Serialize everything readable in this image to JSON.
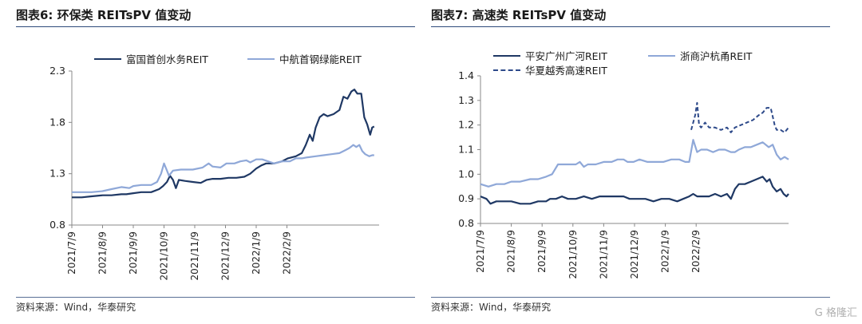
{
  "chart_data": [
    {
      "type": "line",
      "title": "图表6:  环保类 REITsPV 值变动",
      "source": "资料来源：Wind，华泰研究",
      "ylim": [
        0.8,
        2.3
      ],
      "y_ticks": [
        "0.8",
        "1.3",
        "1.8",
        "2.3"
      ],
      "x_ticks": [
        "2021/7/9",
        "2021/8/9",
        "2021/9/9",
        "2021/10/9",
        "2021/11/9",
        "2021/12/9",
        "2022/1/9",
        "2022/2/9"
      ],
      "grid": false,
      "legend_position": "top",
      "series": [
        {
          "name": "富国首创水务REIT",
          "color": "#1f3864",
          "style": "solid",
          "points": [
            [
              0,
              1.07
            ],
            [
              10,
              1.07
            ],
            [
              20,
              1.08
            ],
            [
              31,
              1.09
            ],
            [
              40,
              1.09
            ],
            [
              50,
              1.1
            ],
            [
              55,
              1.1
            ],
            [
              62,
              1.11
            ],
            [
              70,
              1.12
            ],
            [
              80,
              1.12
            ],
            [
              88,
              1.15
            ],
            [
              92,
              1.18
            ],
            [
              96,
              1.22
            ],
            [
              99,
              1.28
            ],
            [
              102,
              1.24
            ],
            [
              105,
              1.16
            ],
            [
              108,
              1.24
            ],
            [
              114,
              1.23
            ],
            [
              122,
              1.22
            ],
            [
              130,
              1.21
            ],
            [
              136,
              1.24
            ],
            [
              142,
              1.25
            ],
            [
              150,
              1.25
            ],
            [
              158,
              1.26
            ],
            [
              166,
              1.26
            ],
            [
              174,
              1.27
            ],
            [
              180,
              1.3
            ],
            [
              186,
              1.35
            ],
            [
              191,
              1.38
            ],
            [
              196,
              1.4
            ],
            [
              204,
              1.4
            ],
            [
              212,
              1.42
            ],
            [
              218,
              1.45
            ],
            [
              226,
              1.47
            ],
            [
              232,
              1.5
            ],
            [
              236,
              1.58
            ],
            [
              240,
              1.68
            ],
            [
              243,
              1.62
            ],
            [
              246,
              1.75
            ],
            [
              250,
              1.85
            ],
            [
              254,
              1.88
            ],
            [
              258,
              1.86
            ],
            [
              264,
              1.88
            ],
            [
              270,
              1.92
            ],
            [
              274,
              2.05
            ],
            [
              278,
              2.03
            ],
            [
              282,
              2.1
            ],
            [
              285,
              2.12
            ],
            [
              288,
              2.08
            ],
            [
              292,
              2.08
            ],
            [
              295,
              1.85
            ],
            [
              298,
              1.78
            ],
            [
              301,
              1.68
            ],
            [
              303,
              1.75
            ],
            [
              305,
              1.76
            ]
          ]
        },
        {
          "name": "中航首钢绿能REIT",
          "color": "#8fa8d8",
          "style": "solid",
          "points": [
            [
              0,
              1.12
            ],
            [
              10,
              1.12
            ],
            [
              20,
              1.12
            ],
            [
              31,
              1.13
            ],
            [
              40,
              1.15
            ],
            [
              50,
              1.17
            ],
            [
              58,
              1.16
            ],
            [
              62,
              1.18
            ],
            [
              70,
              1.19
            ],
            [
              80,
              1.19
            ],
            [
              86,
              1.22
            ],
            [
              90,
              1.3
            ],
            [
              93,
              1.4
            ],
            [
              96,
              1.33
            ],
            [
              98,
              1.28
            ],
            [
              102,
              1.33
            ],
            [
              110,
              1.34
            ],
            [
              122,
              1.34
            ],
            [
              132,
              1.36
            ],
            [
              138,
              1.4
            ],
            [
              142,
              1.37
            ],
            [
              150,
              1.36
            ],
            [
              156,
              1.4
            ],
            [
              164,
              1.4
            ],
            [
              170,
              1.42
            ],
            [
              176,
              1.43
            ],
            [
              180,
              1.41
            ],
            [
              186,
              1.44
            ],
            [
              192,
              1.44
            ],
            [
              198,
              1.42
            ],
            [
              204,
              1.4
            ],
            [
              212,
              1.42
            ],
            [
              220,
              1.42
            ],
            [
              226,
              1.45
            ],
            [
              232,
              1.45
            ],
            [
              238,
              1.46
            ],
            [
              246,
              1.47
            ],
            [
              254,
              1.48
            ],
            [
              262,
              1.49
            ],
            [
              270,
              1.5
            ],
            [
              276,
              1.53
            ],
            [
              280,
              1.55
            ],
            [
              284,
              1.58
            ],
            [
              287,
              1.56
            ],
            [
              290,
              1.58
            ],
            [
              293,
              1.52
            ],
            [
              296,
              1.49
            ],
            [
              300,
              1.47
            ],
            [
              303,
              1.48
            ],
            [
              305,
              1.48
            ]
          ]
        }
      ]
    },
    {
      "type": "line",
      "title": "图表7:  高速类 REITsPV 值变动",
      "source": "资料来源：Wind，华泰研究",
      "ylim": [
        0.8,
        1.4
      ],
      "y_ticks": [
        "0.8",
        "0.9",
        "1.0",
        "1.1",
        "1.2",
        "1.3",
        "1.4"
      ],
      "x_ticks": [
        "2021/7/9",
        "2021/8/9",
        "2021/9/9",
        "2021/10/9",
        "2021/11/9",
        "2021/12/9",
        "2022/1/9",
        "2022/2/9"
      ],
      "grid": false,
      "legend_position": "top",
      "series": [
        {
          "name": "平安广州广河REIT",
          "color": "#1f3864",
          "style": "solid",
          "points": [
            [
              0,
              0.91
            ],
            [
              6,
              0.9
            ],
            [
              10,
              0.88
            ],
            [
              16,
              0.89
            ],
            [
              24,
              0.89
            ],
            [
              31,
              0.89
            ],
            [
              40,
              0.88
            ],
            [
              50,
              0.88
            ],
            [
              58,
              0.89
            ],
            [
              66,
              0.89
            ],
            [
              70,
              0.9
            ],
            [
              76,
              0.9
            ],
            [
              82,
              0.91
            ],
            [
              88,
              0.9
            ],
            [
              96,
              0.9
            ],
            [
              104,
              0.91
            ],
            [
              112,
              0.9
            ],
            [
              120,
              0.91
            ],
            [
              128,
              0.91
            ],
            [
              136,
              0.91
            ],
            [
              144,
              0.91
            ],
            [
              150,
              0.9
            ],
            [
              158,
              0.9
            ],
            [
              166,
              0.9
            ],
            [
              174,
              0.89
            ],
            [
              182,
              0.9
            ],
            [
              190,
              0.9
            ],
            [
              198,
              0.89
            ],
            [
              204,
              0.9
            ],
            [
              210,
              0.91
            ],
            [
              214,
              0.92
            ],
            [
              218,
              0.91
            ],
            [
              224,
              0.91
            ],
            [
              230,
              0.91
            ],
            [
              236,
              0.92
            ],
            [
              242,
              0.91
            ],
            [
              248,
              0.92
            ],
            [
              252,
              0.9
            ],
            [
              256,
              0.94
            ],
            [
              260,
              0.96
            ],
            [
              266,
              0.96
            ],
            [
              272,
              0.97
            ],
            [
              278,
              0.98
            ],
            [
              284,
              0.99
            ],
            [
              288,
              0.97
            ],
            [
              291,
              0.98
            ],
            [
              294,
              0.95
            ],
            [
              298,
              0.93
            ],
            [
              302,
              0.94
            ],
            [
              305,
              0.92
            ],
            [
              308,
              0.91
            ],
            [
              310,
              0.92
            ]
          ]
        },
        {
          "name": "浙商沪杭甬REIT",
          "color": "#8fa8d8",
          "style": "solid",
          "points": [
            [
              0,
              0.96
            ],
            [
              8,
              0.95
            ],
            [
              16,
              0.96
            ],
            [
              24,
              0.96
            ],
            [
              31,
              0.97
            ],
            [
              40,
              0.97
            ],
            [
              50,
              0.98
            ],
            [
              58,
              0.98
            ],
            [
              66,
              0.99
            ],
            [
              72,
              1.0
            ],
            [
              78,
              1.04
            ],
            [
              84,
              1.04
            ],
            [
              90,
              1.04
            ],
            [
              96,
              1.04
            ],
            [
              100,
              1.05
            ],
            [
              104,
              1.03
            ],
            [
              108,
              1.04
            ],
            [
              116,
              1.04
            ],
            [
              124,
              1.05
            ],
            [
              132,
              1.05
            ],
            [
              138,
              1.06
            ],
            [
              144,
              1.06
            ],
            [
              148,
              1.05
            ],
            [
              154,
              1.05
            ],
            [
              160,
              1.06
            ],
            [
              168,
              1.05
            ],
            [
              176,
              1.05
            ],
            [
              184,
              1.05
            ],
            [
              192,
              1.06
            ],
            [
              200,
              1.06
            ],
            [
              206,
              1.05
            ],
            [
              210,
              1.05
            ],
            [
              214,
              1.14
            ],
            [
              218,
              1.09
            ],
            [
              222,
              1.1
            ],
            [
              228,
              1.1
            ],
            [
              234,
              1.09
            ],
            [
              240,
              1.1
            ],
            [
              246,
              1.1
            ],
            [
              252,
              1.09
            ],
            [
              256,
              1.09
            ],
            [
              260,
              1.1
            ],
            [
              266,
              1.11
            ],
            [
              272,
              1.11
            ],
            [
              278,
              1.12
            ],
            [
              284,
              1.13
            ],
            [
              290,
              1.11
            ],
            [
              294,
              1.12
            ],
            [
              298,
              1.08
            ],
            [
              302,
              1.06
            ],
            [
              306,
              1.07
            ],
            [
              310,
              1.06
            ]
          ]
        },
        {
          "name": "华夏越秀高速REIT",
          "color": "#2e4a8a",
          "style": "dashed",
          "points": [
            [
              212,
              1.18
            ],
            [
              214,
              1.21
            ],
            [
              216,
              1.24
            ],
            [
              218,
              1.29
            ],
            [
              220,
              1.2
            ],
            [
              222,
              1.19
            ],
            [
              226,
              1.21
            ],
            [
              230,
              1.19
            ],
            [
              236,
              1.19
            ],
            [
              242,
              1.18
            ],
            [
              248,
              1.19
            ],
            [
              252,
              1.17
            ],
            [
              256,
              1.19
            ],
            [
              262,
              1.2
            ],
            [
              268,
              1.21
            ],
            [
              274,
              1.22
            ],
            [
              280,
              1.24
            ],
            [
              284,
              1.25
            ],
            [
              288,
              1.27
            ],
            [
              292,
              1.27
            ],
            [
              296,
              1.2
            ],
            [
              298,
              1.18
            ],
            [
              302,
              1.18
            ],
            [
              306,
              1.17
            ],
            [
              310,
              1.19
            ]
          ]
        }
      ]
    }
  ],
  "watermark": "G 格隆汇"
}
